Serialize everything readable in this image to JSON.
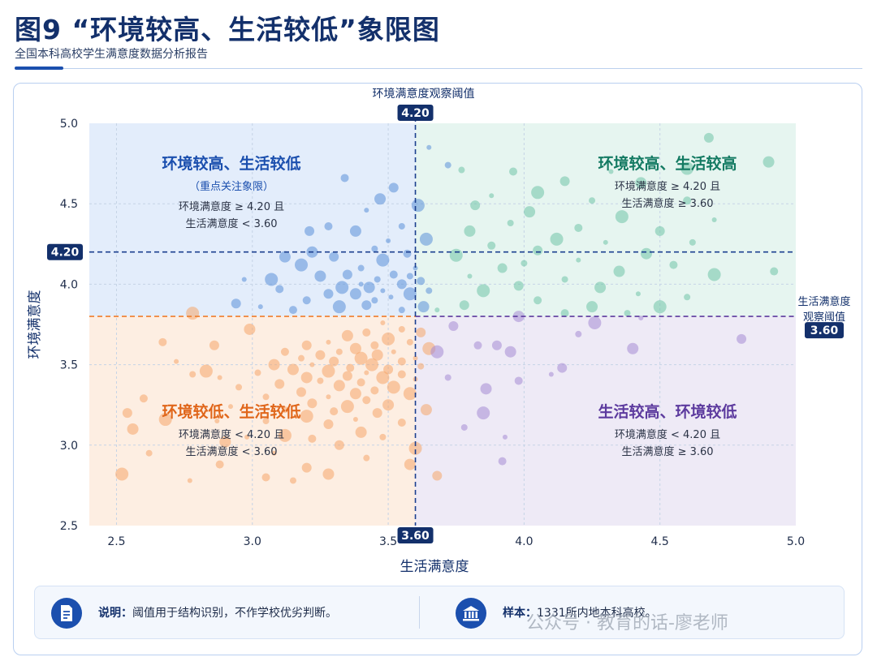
{
  "header": {
    "title": "图9 “环境较高、生活较低”象限图",
    "subtitle": "全国本科高校学生满意度数据分析报告"
  },
  "footer": {
    "note_label": "说明：",
    "note_text": "阈值用于结构识别，不作学校优劣判断。",
    "sample_label": "样本：",
    "sample_text": "1331所内地本科高校。",
    "note_icon": "document-icon",
    "sample_icon": "institution-icon"
  },
  "watermark": "公众号 · 教育的话-廖老师",
  "chart_data": {
    "type": "scatter",
    "xlabel": "生活满意度",
    "ylabel": "环境满意度",
    "xlim": [
      2.4,
      5.0
    ],
    "ylim": [
      2.5,
      5.0
    ],
    "xticks": [
      "2.5",
      "3.0",
      "3.5",
      "4.0",
      "4.5",
      "5.0"
    ],
    "yticks": [
      "2.5",
      "3.0",
      "3.5",
      "4.0",
      "4.5",
      "5.0"
    ],
    "grid": true,
    "thresholds": {
      "x": 3.6,
      "x_label": "3.60",
      "x_title_lines": [
        "生活满意度",
        "观察阈值"
      ],
      "y": 4.2,
      "y_label": "4.20",
      "y_title": "环境满意度观察阈值",
      "orange_line_y": 3.8
    },
    "quadrants": [
      {
        "key": "tl",
        "title": "环境较高、生活较低",
        "subtitle": "（重点关注象限）",
        "rule1": "环境满意度 ≥ 4.20 且",
        "rule2": "生活满意度 < 3.60",
        "color": "#1b4fae",
        "fill": "#e3edfb"
      },
      {
        "key": "tr",
        "title": "环境较高、生活较高",
        "subtitle": "",
        "rule1": "环境满意度 ≥ 4.20 且",
        "rule2": "生活满意度 ≥ 3.60",
        "color": "#137a62",
        "fill": "#e6f5f0"
      },
      {
        "key": "bl",
        "title": "环境较低、生活较低",
        "subtitle": "",
        "rule1": "环境满意度 < 4.20 且",
        "rule2": "生活满意度 < 3.60",
        "color": "#e0661a",
        "fill": "#fdeee2"
      },
      {
        "key": "br",
        "title": "生活较高、环境较低",
        "subtitle": "",
        "rule1": "环境满意度 < 4.20 且",
        "rule2": "生活满意度 ≥ 3.60",
        "color": "#5c3a9e",
        "fill": "#eeeaf6"
      }
    ],
    "series": [
      {
        "group": "环境较高、生活较低",
        "color": "#5b8fd9",
        "points": [
          [
            3.65,
            4.85
          ],
          [
            3.72,
            4.74
          ],
          [
            3.34,
            4.66
          ],
          [
            3.52,
            4.6
          ],
          [
            3.47,
            4.53
          ],
          [
            3.61,
            4.49
          ],
          [
            3.42,
            4.46
          ],
          [
            3.55,
            4.36
          ],
          [
            3.28,
            4.36
          ],
          [
            3.21,
            4.33
          ],
          [
            3.38,
            4.33
          ],
          [
            3.64,
            4.28
          ],
          [
            3.5,
            4.27
          ],
          [
            3.45,
            4.22
          ],
          [
            3.57,
            4.19
          ],
          [
            3.3,
            4.17
          ],
          [
            3.12,
            4.17
          ],
          [
            3.18,
            4.12
          ],
          [
            3.6,
            4.1
          ],
          [
            3.4,
            4.1
          ],
          [
            3.52,
            4.06
          ],
          [
            3.35,
            4.06
          ],
          [
            3.25,
            4.05
          ],
          [
            3.07,
            4.03
          ],
          [
            2.97,
            4.03
          ],
          [
            3.46,
            4.03
          ],
          [
            3.62,
            4.02
          ],
          [
            3.55,
            4.0
          ],
          [
            3.43,
            3.98
          ],
          [
            3.33,
            3.98
          ],
          [
            3.48,
            3.96
          ],
          [
            3.65,
            3.96
          ],
          [
            3.1,
            3.97
          ],
          [
            3.28,
            3.94
          ],
          [
            3.38,
            3.94
          ],
          [
            3.58,
            3.94
          ],
          [
            3.51,
            3.92
          ],
          [
            3.45,
            3.9
          ],
          [
            3.2,
            3.9
          ],
          [
            3.42,
            3.87
          ],
          [
            3.63,
            3.86
          ],
          [
            3.32,
            3.86
          ],
          [
            3.03,
            3.86
          ],
          [
            3.55,
            3.84
          ],
          [
            3.15,
            3.84
          ],
          [
            2.94,
            3.88
          ],
          [
            3.22,
            4.2
          ],
          [
            3.48,
            4.15
          ],
          [
            3.4,
            4.0
          ],
          [
            3.58,
            4.05
          ]
        ]
      },
      {
        "group": "环境较高、生活较高",
        "color": "#6fc3a8",
        "points": [
          [
            4.68,
            4.91
          ],
          [
            4.9,
            4.76
          ],
          [
            4.6,
            4.72
          ],
          [
            4.32,
            4.7
          ],
          [
            3.77,
            4.71
          ],
          [
            3.96,
            4.7
          ],
          [
            4.15,
            4.64
          ],
          [
            4.43,
            4.63
          ],
          [
            4.05,
            4.57
          ],
          [
            3.88,
            4.55
          ],
          [
            4.25,
            4.52
          ],
          [
            4.6,
            4.52
          ],
          [
            3.82,
            4.49
          ],
          [
            4.02,
            4.45
          ],
          [
            4.36,
            4.42
          ],
          [
            4.7,
            4.4
          ],
          [
            3.95,
            4.38
          ],
          [
            4.2,
            4.35
          ],
          [
            4.5,
            4.33
          ],
          [
            3.8,
            4.33
          ],
          [
            4.12,
            4.28
          ],
          [
            4.3,
            4.26
          ],
          [
            4.62,
            4.26
          ],
          [
            3.88,
            4.24
          ],
          [
            4.05,
            4.21
          ],
          [
            4.45,
            4.19
          ],
          [
            3.75,
            4.18
          ],
          [
            4.2,
            4.15
          ],
          [
            4.0,
            4.13
          ],
          [
            4.55,
            4.12
          ],
          [
            3.92,
            4.1
          ],
          [
            4.35,
            4.08
          ],
          [
            4.7,
            4.06
          ],
          [
            3.8,
            4.05
          ],
          [
            4.15,
            4.03
          ],
          [
            4.92,
            4.08
          ],
          [
            3.98,
            3.99
          ],
          [
            4.28,
            3.98
          ],
          [
            3.85,
            3.96
          ],
          [
            4.42,
            3.94
          ],
          [
            4.6,
            3.92
          ],
          [
            4.05,
            3.9
          ],
          [
            3.78,
            3.87
          ],
          [
            4.25,
            3.86
          ],
          [
            4.5,
            3.86
          ],
          [
            3.68,
            3.84
          ],
          [
            4.38,
            3.82
          ],
          [
            4.15,
            3.82
          ]
        ]
      },
      {
        "group": "环境较低、生活较低",
        "color": "#f6a66a",
        "points": [
          [
            3.48,
            3.76
          ],
          [
            3.55,
            3.72
          ],
          [
            3.42,
            3.7
          ],
          [
            3.62,
            3.7
          ],
          [
            3.35,
            3.68
          ],
          [
            3.5,
            3.66
          ],
          [
            3.28,
            3.64
          ],
          [
            3.58,
            3.64
          ],
          [
            3.45,
            3.62
          ],
          [
            3.2,
            3.62
          ],
          [
            3.38,
            3.6
          ],
          [
            3.65,
            3.6
          ],
          [
            3.52,
            3.58
          ],
          [
            3.32,
            3.58
          ],
          [
            3.12,
            3.58
          ],
          [
            3.25,
            3.56
          ],
          [
            3.46,
            3.56
          ],
          [
            3.4,
            3.54
          ],
          [
            3.6,
            3.54
          ],
          [
            3.18,
            3.54
          ],
          [
            3.55,
            3.52
          ],
          [
            3.3,
            3.52
          ],
          [
            3.08,
            3.5
          ],
          [
            3.44,
            3.5
          ],
          [
            3.22,
            3.5
          ],
          [
            3.62,
            3.49
          ],
          [
            3.36,
            3.48
          ],
          [
            3.5,
            3.47
          ],
          [
            3.15,
            3.47
          ],
          [
            3.28,
            3.46
          ],
          [
            3.42,
            3.45
          ],
          [
            3.02,
            3.45
          ],
          [
            3.55,
            3.44
          ],
          [
            3.35,
            3.43
          ],
          [
            3.2,
            3.42
          ],
          [
            3.48,
            3.42
          ],
          [
            3.6,
            3.41
          ],
          [
            3.25,
            3.4
          ],
          [
            3.4,
            3.39
          ],
          [
            3.1,
            3.38
          ],
          [
            3.32,
            3.37
          ],
          [
            3.52,
            3.36
          ],
          [
            2.88,
            3.42
          ],
          [
            2.95,
            3.36
          ],
          [
            3.45,
            3.34
          ],
          [
            3.18,
            3.33
          ],
          [
            3.38,
            3.32
          ],
          [
            3.58,
            3.32
          ],
          [
            3.28,
            3.3
          ],
          [
            3.05,
            3.3
          ],
          [
            3.42,
            3.28
          ],
          [
            3.22,
            3.26
          ],
          [
            3.5,
            3.25
          ],
          [
            3.35,
            3.24
          ],
          [
            2.92,
            3.24
          ],
          [
            3.12,
            3.22
          ],
          [
            3.3,
            3.21
          ],
          [
            3.46,
            3.2
          ],
          [
            3.64,
            3.22
          ],
          [
            3.2,
            3.18
          ],
          [
            3.38,
            3.16
          ],
          [
            3.05,
            3.15
          ],
          [
            2.6,
            3.29
          ],
          [
            2.54,
            3.2
          ],
          [
            2.56,
            3.1
          ],
          [
            2.68,
            3.16
          ],
          [
            2.87,
            3.15
          ],
          [
            2.62,
            2.95
          ],
          [
            3.55,
            3.14
          ],
          [
            3.28,
            3.13
          ],
          [
            3.4,
            3.08
          ],
          [
            3.12,
            3.06
          ],
          [
            2.98,
            3.05
          ],
          [
            3.48,
            3.05
          ],
          [
            3.22,
            3.04
          ],
          [
            3.32,
            3.0
          ],
          [
            2.9,
            3.02
          ],
          [
            3.6,
            2.98
          ],
          [
            3.08,
            2.95
          ],
          [
            3.42,
            2.92
          ],
          [
            2.88,
            2.88
          ],
          [
            3.2,
            2.86
          ],
          [
            3.58,
            2.88
          ],
          [
            2.52,
            2.82
          ],
          [
            2.77,
            2.78
          ],
          [
            3.15,
            2.78
          ],
          [
            3.05,
            2.8
          ],
          [
            3.68,
            2.81
          ],
          [
            3.28,
            2.82
          ],
          [
            2.78,
            3.82
          ],
          [
            2.72,
            3.52
          ],
          [
            2.78,
            3.44
          ],
          [
            2.67,
            3.64
          ],
          [
            2.86,
            3.62
          ],
          [
            2.99,
            3.72
          ],
          [
            2.83,
            3.46
          ]
        ]
      },
      {
        "group": "生活较高、环境较低",
        "color": "#a58bd4",
        "points": [
          [
            3.74,
            3.74
          ],
          [
            3.98,
            3.8
          ],
          [
            4.26,
            3.76
          ],
          [
            4.43,
            3.79
          ],
          [
            4.2,
            3.69
          ],
          [
            3.83,
            3.62
          ],
          [
            3.9,
            3.62
          ],
          [
            3.95,
            3.58
          ],
          [
            3.68,
            3.58
          ],
          [
            4.1,
            3.44
          ],
          [
            3.72,
            3.42
          ],
          [
            3.98,
            3.4
          ],
          [
            4.8,
            3.66
          ],
          [
            4.4,
            3.6
          ],
          [
            3.85,
            3.2
          ],
          [
            3.93,
            3.05
          ],
          [
            3.78,
            3.11
          ],
          [
            3.92,
            2.9
          ],
          [
            4.14,
            3.48
          ],
          [
            3.86,
            3.35
          ]
        ]
      }
    ]
  }
}
